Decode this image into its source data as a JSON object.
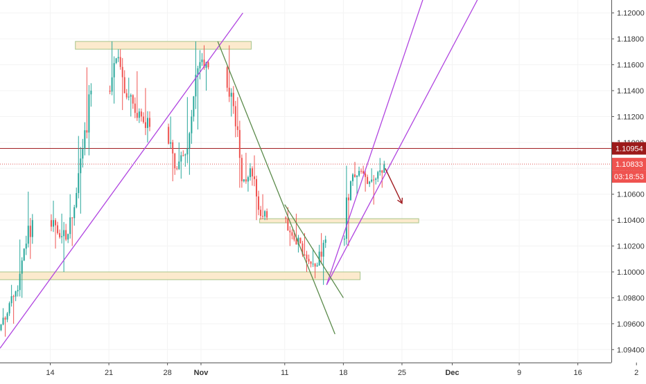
{
  "chart_data": {
    "type": "candlestick",
    "xlim": [
      "2019-10-08",
      "2019-12-20"
    ],
    "ylim": [
      1.093,
      1.121
    ],
    "y_ticks": [
      "1.12000",
      "1.11800",
      "1.11600",
      "1.11400",
      "1.11200",
      "1.11000",
      "1.10800",
      "1.10600",
      "1.10400",
      "1.10200",
      "1.10000",
      "1.09800",
      "1.09600",
      "1.09400"
    ],
    "y_tick_values": [
      1.12,
      1.118,
      1.116,
      1.114,
      1.112,
      1.11,
      1.108,
      1.106,
      1.104,
      1.102,
      1.1,
      1.098,
      1.096,
      1.094
    ],
    "x_ticks": [
      {
        "label": "14",
        "date": "2019-10-14"
      },
      {
        "label": "21",
        "date": "2019-10-21"
      },
      {
        "label": "28",
        "date": "2019-10-28"
      },
      {
        "label": "Nov",
        "date": "2019-11-01",
        "bold": true
      },
      {
        "label": "11",
        "date": "2019-11-11"
      },
      {
        "label": "18",
        "date": "2019-11-18"
      },
      {
        "label": "25",
        "date": "2019-11-25"
      },
      {
        "label": "Dec",
        "date": "2019-12-01",
        "bold": true
      },
      {
        "label": "9",
        "date": "2019-12-09"
      },
      {
        "label": "16",
        "date": "2019-12-16"
      },
      {
        "label": "2",
        "date": "2019-12-23"
      }
    ],
    "candles": [
      {
        "date": "2019-10-08",
        "o": 1.0955,
        "h": 1.0972,
        "l": 1.095,
        "c": 1.0968
      },
      {
        "date": "2019-10-09",
        "o": 1.0968,
        "h": 1.099,
        "l": 1.096,
        "c": 1.0985
      },
      {
        "date": "2019-10-10",
        "o": 1.0985,
        "h": 1.1025,
        "l": 1.098,
        "c": 1.1018
      },
      {
        "date": "2019-10-11",
        "o": 1.1018,
        "h": 1.1062,
        "l": 1.101,
        "c": 1.104
      },
      {
        "date": "2019-10-14",
        "o": 1.104,
        "h": 1.1055,
        "l": 1.1018,
        "c": 1.103
      },
      {
        "date": "2019-10-15",
        "o": 1.103,
        "h": 1.1045,
        "l": 1.1,
        "c": 1.1025
      },
      {
        "date": "2019-10-16",
        "o": 1.1025,
        "h": 1.106,
        "l": 1.102,
        "c": 1.105
      },
      {
        "date": "2019-10-17",
        "o": 1.105,
        "h": 1.1105,
        "l": 1.1045,
        "c": 1.1095
      },
      {
        "date": "2019-10-18",
        "o": 1.1095,
        "h": 1.1158,
        "l": 1.109,
        "c": 1.114
      },
      {
        "date": "2019-10-21",
        "o": 1.114,
        "h": 1.1178,
        "l": 1.113,
        "c": 1.1165
      },
      {
        "date": "2019-10-22",
        "o": 1.1165,
        "h": 1.1172,
        "l": 1.1125,
        "c": 1.1138
      },
      {
        "date": "2019-10-23",
        "o": 1.1138,
        "h": 1.115,
        "l": 1.112,
        "c": 1.113
      },
      {
        "date": "2019-10-24",
        "o": 1.113,
        "h": 1.1155,
        "l": 1.1115,
        "c": 1.112
      },
      {
        "date": "2019-10-25",
        "o": 1.112,
        "h": 1.1142,
        "l": 1.11,
        "c": 1.1112
      },
      {
        "date": "2019-10-28",
        "o": 1.1112,
        "h": 1.112,
        "l": 1.107,
        "c": 1.108
      },
      {
        "date": "2019-10-29",
        "o": 1.108,
        "h": 1.11,
        "l": 1.1072,
        "c": 1.109
      },
      {
        "date": "2019-10-30",
        "o": 1.109,
        "h": 1.1135,
        "l": 1.1075,
        "c": 1.112
      },
      {
        "date": "2019-10-31",
        "o": 1.112,
        "h": 1.1178,
        "l": 1.111,
        "c": 1.1162
      },
      {
        "date": "2019-11-01",
        "o": 1.1162,
        "h": 1.1175,
        "l": 1.114,
        "c": 1.1158
      },
      {
        "date": "2019-11-04",
        "o": 1.1158,
        "h": 1.1175,
        "l": 1.112,
        "c": 1.1128
      },
      {
        "date": "2019-11-05",
        "o": 1.1128,
        "h": 1.1135,
        "l": 1.1065,
        "c": 1.107
      },
      {
        "date": "2019-11-06",
        "o": 1.107,
        "h": 1.1092,
        "l": 1.1062,
        "c": 1.108
      },
      {
        "date": "2019-11-07",
        "o": 1.108,
        "h": 1.109,
        "l": 1.104,
        "c": 1.1048
      },
      {
        "date": "2019-11-08",
        "o": 1.1048,
        "h": 1.106,
        "l": 1.104,
        "c": 1.1042
      },
      {
        "date": "2019-11-11",
        "o": 1.1042,
        "h": 1.105,
        "l": 1.102,
        "c": 1.1028
      },
      {
        "date": "2019-11-12",
        "o": 1.1028,
        "h": 1.1045,
        "l": 1.1015,
        "c": 1.1022
      },
      {
        "date": "2019-11-13",
        "o": 1.1022,
        "h": 1.103,
        "l": 1.1,
        "c": 1.1008
      },
      {
        "date": "2019-11-14",
        "o": 1.1008,
        "h": 1.1018,
        "l": 1.0995,
        "c": 1.1005
      },
      {
        "date": "2019-11-15",
        "o": 1.1005,
        "h": 1.103,
        "l": 1.099,
        "c": 1.1025
      },
      {
        "date": "2019-11-18",
        "o": 1.1025,
        "h": 1.1082,
        "l": 1.102,
        "c": 1.107
      },
      {
        "date": "2019-11-19",
        "o": 1.107,
        "h": 1.1085,
        "l": 1.106,
        "c": 1.1078
      },
      {
        "date": "2019-11-20",
        "o": 1.1078,
        "h": 1.1082,
        "l": 1.1062,
        "c": 1.1068
      },
      {
        "date": "2019-11-21",
        "o": 1.1068,
        "h": 1.108,
        "l": 1.1052,
        "c": 1.1072
      },
      {
        "date": "2019-11-22",
        "o": 1.1072,
        "h": 1.1088,
        "l": 1.1065,
        "c": 1.1083
      }
    ],
    "zones": [
      {
        "y1": 1.1172,
        "y2": 1.1178,
        "x1": "2019-10-17",
        "x2": "2019-11-07"
      },
      {
        "y1": 1.1,
        "y2": 1.0994,
        "x1": "2019-10-06",
        "x2": "2019-11-20"
      },
      {
        "y1": 1.1041,
        "y2": 1.1038,
        "x1": "2019-11-08",
        "x2": "2019-11-27"
      }
    ],
    "trendlines": [
      {
        "color": "#b044e0",
        "x1": "2019-10-08",
        "y1": 1.0941,
        "x2": "2019-11-06",
        "y2": 1.12
      },
      {
        "color": "#b044e0",
        "x1": "2019-11-16",
        "y1": 1.099,
        "x2": "2019-11-28",
        "y2": 1.122
      },
      {
        "color": "#b044e0",
        "x1": "2019-11-16",
        "y1": 1.099,
        "x2": "2019-12-04",
        "y2": 1.121
      },
      {
        "color": "#5a8a4a",
        "x1": "2019-11-03",
        "y1": 1.1178,
        "x2": "2019-11-17",
        "y2": 1.0952
      },
      {
        "color": "#5a8a4a",
        "x1": "2019-11-11",
        "y1": 1.1052,
        "x2": "2019-11-18",
        "y2": 1.098
      }
    ],
    "hlines": [
      {
        "y": 1.10954,
        "color": "#a01c20",
        "style": "solid"
      },
      {
        "y": 1.10833,
        "color": "#e05555",
        "style": "dotted"
      }
    ],
    "arrow": {
      "x1": "2019-11-23",
      "y1": 1.108,
      "x2": "2019-11-25",
      "y2": 1.1053,
      "color": "#a01c20"
    },
    "price_labels": [
      {
        "text": "1.10954",
        "y": 1.10954,
        "bg": "#9c1a1a",
        "fg": "#ffffff"
      },
      {
        "text": "1.10833",
        "y": 1.10833,
        "bg": "#ef5350",
        "fg": "#ffffff"
      }
    ],
    "countdown": {
      "text": "03:18:53",
      "bg": "#ef5350",
      "fg": "#ffffff"
    },
    "colors": {
      "up": "#26a69a",
      "down": "#ef5350",
      "axis_text": "#333333",
      "grid": "#f3f3f3"
    }
  }
}
